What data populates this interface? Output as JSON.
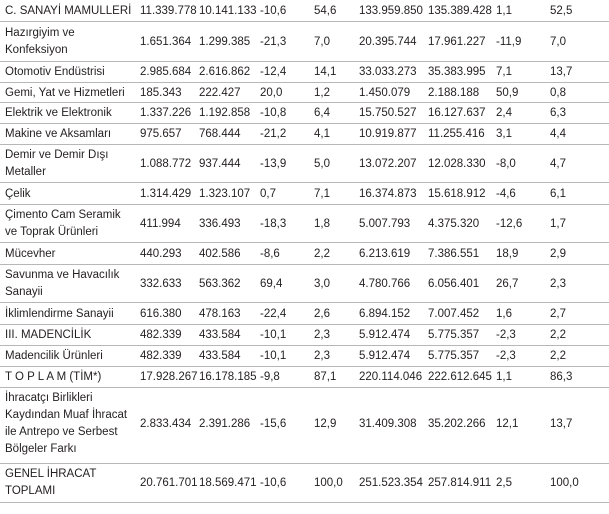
{
  "rows": [
    {
      "name": "C. SANAYİ MAMULLERİ",
      "v1": "11.339.778",
      "v2": "10.141.133",
      "c1": "-10,6",
      "s1": "54,6",
      "v3": "133.959.850",
      "v4": "135.389.428",
      "c2": "1,1",
      "s2": "52,5"
    },
    {
      "name": "Hazırgiyim ve Konfeksiyon",
      "v1": "1.651.364",
      "v2": "1.299.385",
      "c1": "-21,3",
      "s1": "7,0",
      "v3": "20.395.744",
      "v4": "17.961.227",
      "c2": "-11,9",
      "s2": "7,0"
    },
    {
      "name": "Otomotiv Endüstrisi",
      "v1": "2.985.684",
      "v2": "2.616.862",
      "c1": "-12,4",
      "s1": "14,1",
      "v3": "33.033.273",
      "v4": "35.383.995",
      "c2": "7,1",
      "s2": "13,7"
    },
    {
      "name": "Gemi, Yat ve Hizmetleri",
      "v1": "185.343",
      "v2": "222.427",
      "c1": "20,0",
      "s1": "1,2",
      "v3": "1.450.079",
      "v4": "2.188.188",
      "c2": "50,9",
      "s2": "0,8"
    },
    {
      "name": "Elektrik ve Elektronik",
      "v1": "1.337.226",
      "v2": "1.192.858",
      "c1": "-10,8",
      "s1": "6,4",
      "v3": "15.750.527",
      "v4": "16.127.637",
      "c2": "2,4",
      "s2": "6,3"
    },
    {
      "name": "Makine ve Aksamları",
      "v1": "975.657",
      "v2": "768.444",
      "c1": "-21,2",
      "s1": "4,1",
      "v3": "10.919.877",
      "v4": "11.255.416",
      "c2": "3,1",
      "s2": "4,4"
    },
    {
      "name": "Demir ve Demir Dışı Metaller",
      "v1": "1.088.772",
      "v2": "937.444",
      "c1": "-13,9",
      "s1": "5,0",
      "v3": "13.072.207",
      "v4": "12.028.330",
      "c2": "-8,0",
      "s2": "4,7"
    },
    {
      "name": "Çelik",
      "v1": "1.314.429",
      "v2": "1.323.107",
      "c1": "0,7",
      "s1": "7,1",
      "v3": "16.374.873",
      "v4": "15.618.912",
      "c2": "-4,6",
      "s2": "6,1"
    },
    {
      "name": "Çimento Cam Seramik ve Toprak Ürünleri",
      "v1": "411.994",
      "v2": "336.493",
      "c1": "-18,3",
      "s1": "1,8",
      "v3": "5.007.793",
      "v4": "4.375.320",
      "c2": "-12,6",
      "s2": "1,7"
    },
    {
      "name": "Mücevher",
      "v1": "440.293",
      "v2": "402.586",
      "c1": "-8,6",
      "s1": "2,2",
      "v3": "6.213.619",
      "v4": "7.386.551",
      "c2": "18,9",
      "s2": "2,9"
    },
    {
      "name": "Savunma ve Havacılık Sanayii",
      "v1": "332.633",
      "v2": "563.362",
      "c1": "69,4",
      "s1": "3,0",
      "v3": "4.780.766",
      "v4": "6.056.401",
      "c2": "26,7",
      "s2": "2,3"
    },
    {
      "name": "İklimlendirme Sanayii",
      "v1": "616.380",
      "v2": "478.163",
      "c1": "-22,4",
      "s1": "2,6",
      "v3": "6.894.152",
      "v4": "7.007.452",
      "c2": "1,6",
      "s2": "2,7"
    },
    {
      "name": "III. MADENCİLİK",
      "v1": "482.339",
      "v2": "433.584",
      "c1": "-10,1",
      "s1": "2,3",
      "v3": "5.912.474",
      "v4": "5.775.357",
      "c2": "-2,3",
      "s2": "2,2"
    },
    {
      "name": "Madencilik Ürünleri",
      "v1": "482.339",
      "v2": "433.584",
      "c1": "-10,1",
      "s1": "2,3",
      "v3": "5.912.474",
      "v4": "5.775.357",
      "c2": "-2,3",
      "s2": "2,2"
    },
    {
      "name": "T O P L A M (TİM*)",
      "v1": "17.928.267",
      "v2": "16.178.185",
      "c1": "-9,8",
      "s1": "87,1",
      "v3": "220.114.046",
      "v4": "222.612.645",
      "c2": "1,1",
      "s2": "86,3"
    },
    {
      "name": "İhracatçı Birlikleri Kaydından Muaf İhracat ile Antrepo ve Serbest Bölgeler Farkı",
      "v1": "2.833.434",
      "v2": "2.391.286",
      "c1": "-15,6",
      "s1": "12,9",
      "v3": "31.409.308",
      "v4": "35.202.266",
      "c2": "12,1",
      "s2": "13,7"
    },
    {
      "name": "GENEL İHRACAT TOPLAMI",
      "v1": "20.761.701",
      "v2": "18.569.471",
      "c1": "-10,6",
      "s1": "100,0",
      "v3": "251.523.354",
      "v4": "257.814.911",
      "c2": "2,5",
      "s2": "100,0"
    }
  ]
}
